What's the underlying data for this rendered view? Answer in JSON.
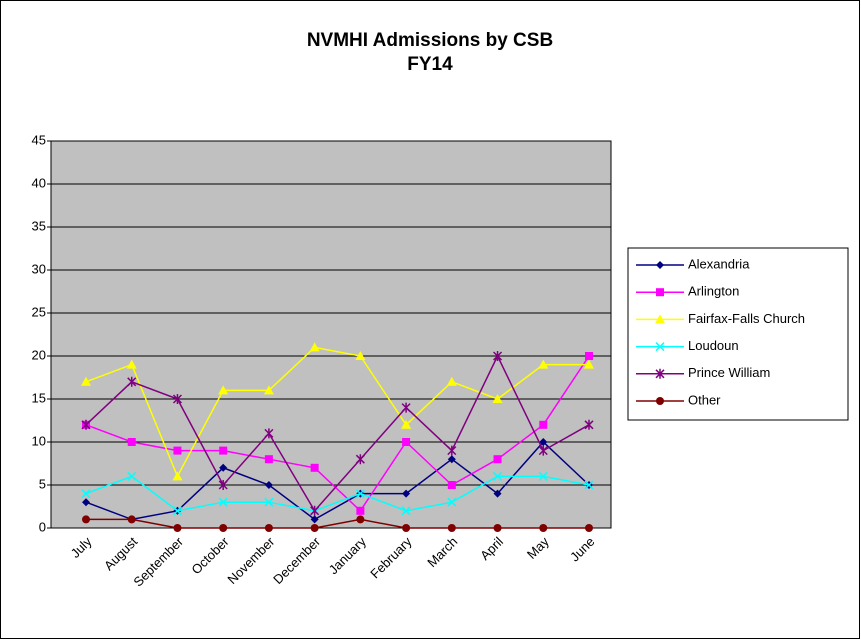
{
  "chart_data": {
    "type": "line",
    "title": "NVMHI Admissions by CSB",
    "subtitle": "FY14",
    "categories": [
      "July",
      "August",
      "September",
      "October",
      "November",
      "December",
      "January",
      "February",
      "March",
      "April",
      "May",
      "June"
    ],
    "series": [
      {
        "name": "Alexandria",
        "color": "#000080",
        "marker": "diamond",
        "values": [
          3,
          1,
          2,
          7,
          5,
          1,
          4,
          4,
          8,
          4,
          10,
          5
        ]
      },
      {
        "name": "Arlington",
        "color": "#FF00FF",
        "marker": "square",
        "values": [
          12,
          10,
          9,
          9,
          8,
          7,
          2,
          10,
          5,
          8,
          12,
          20
        ]
      },
      {
        "name": "Fairfax-Falls Church",
        "color": "#FFFF00",
        "marker": "triangle",
        "values": [
          17,
          19,
          6,
          16,
          16,
          21,
          20,
          12,
          17,
          15,
          19,
          19
        ]
      },
      {
        "name": "Loudoun",
        "color": "#00FFFF",
        "marker": "x",
        "values": [
          4,
          6,
          2,
          3,
          3,
          2,
          4,
          2,
          3,
          6,
          6,
          5
        ]
      },
      {
        "name": "Prince William",
        "color": "#800080",
        "marker": "star",
        "values": [
          12,
          17,
          15,
          5,
          11,
          2,
          8,
          14,
          9,
          20,
          9,
          12
        ]
      },
      {
        "name": "Other",
        "color": "#800000",
        "marker": "circle",
        "values": [
          1,
          1,
          0,
          0,
          0,
          0,
          1,
          0,
          0,
          0,
          0,
          0
        ]
      }
    ],
    "ylim": [
      0,
      45
    ],
    "yticks": [
      0,
      5,
      10,
      15,
      20,
      25,
      30,
      35,
      40,
      45
    ],
    "grid": true,
    "legend": "right"
  }
}
